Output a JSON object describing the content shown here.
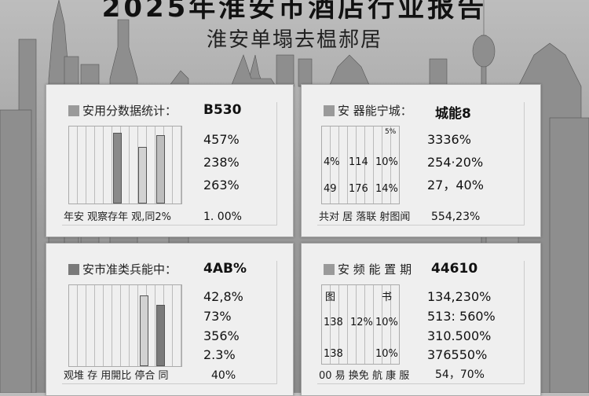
{
  "header": {
    "title": "2025年淮安市酒店行业报告",
    "subtitle": "淮安单塌去榅郝居"
  },
  "colors": {
    "background": "#a8a8a8",
    "card": "#efefef",
    "bar_dark": "#8a8a8a",
    "bar_light": "#cfcfcf"
  },
  "cards": [
    {
      "heading": "安用分数据统计：",
      "heading_value": "B530",
      "values": [
        "457%",
        "238%",
        "263%"
      ],
      "footer": "年安 观察存年 观,同2%",
      "footer_value": "1. 00%"
    },
    {
      "heading": "安 器能宁城：",
      "heading_value": "城能8",
      "table": [
        "5%",
        "4%",
        "114",
        "10%",
        "49",
        "176",
        "14%"
      ],
      "values": [
        "3336%",
        "254·20%",
        "27，40%"
      ],
      "footer": "共对 居 落联 射图闻",
      "footer_value": "554,23%"
    },
    {
      "heading": "安市准类兵能中：",
      "heading_value": "4AB%",
      "values": [
        "42,8%",
        "73%",
        "356%",
        "2.3%"
      ],
      "footer": "观堆 存 用開比 停合 同",
      "footer_value": "40%"
    },
    {
      "heading": "安 频 能 置 期",
      "heading_value": "44610",
      "table": [
        "图",
        "书",
        "138",
        "12%",
        "10%",
        "138",
        "10%"
      ],
      "values": [
        "134,230%",
        "513: 560%",
        "310.500%",
        "376550%"
      ],
      "footer": "00 易 换免 航 康 服",
      "footer_value": "54，70%"
    }
  ]
}
